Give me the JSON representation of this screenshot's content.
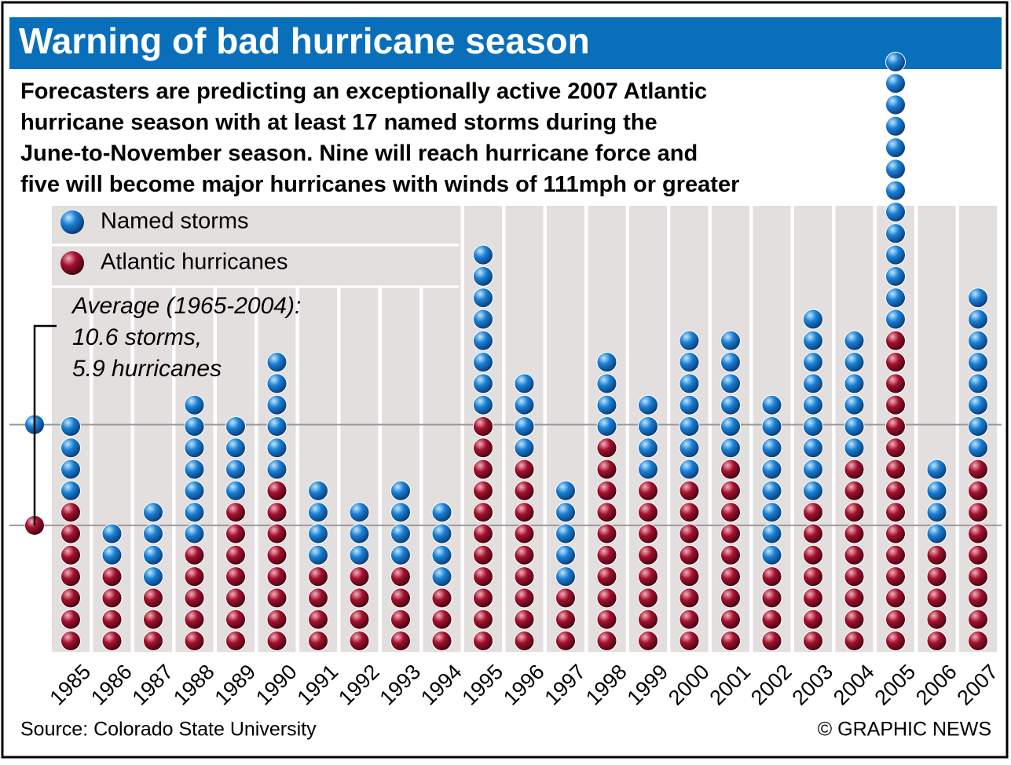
{
  "chart_data": {
    "type": "ballstack",
    "title": "Warning of bad hurricane season",
    "subtitle": [
      "Forecasters are predicting an exceptionally active 2007 Atlantic",
      "hurricane season with at least 17 named storms during the",
      "June-to-November season. Nine will reach hurricane force and",
      "five will become major hurricanes with winds of 111mph or greater"
    ],
    "categories": [
      "1985",
      "1986",
      "1987",
      "1988",
      "1989",
      "1990",
      "1991",
      "1992",
      "1993",
      "1994",
      "1995",
      "1996",
      "1997",
      "1998",
      "1999",
      "2000",
      "2001",
      "2002",
      "2003",
      "2004",
      "2005",
      "2006",
      "2007"
    ],
    "series": [
      {
        "name": "Named storms",
        "color": "#1a7fd4",
        "values": [
          11,
          6,
          7,
          12,
          11,
          14,
          8,
          7,
          8,
          7,
          19,
          13,
          8,
          14,
          12,
          15,
          15,
          12,
          16,
          15,
          28,
          9,
          17
        ]
      },
      {
        "name": "Atlantic hurricanes",
        "color": "#a3112e",
        "values": [
          7,
          4,
          3,
          5,
          7,
          8,
          4,
          4,
          4,
          3,
          11,
          9,
          3,
          10,
          8,
          8,
          9,
          4,
          7,
          9,
          15,
          5,
          9
        ]
      }
    ],
    "average_note": [
      "Average (1965-2004):",
      "10.6 storms,",
      "5.9 hurricanes"
    ],
    "averages": [
      10.6,
      5.9
    ],
    "source": "Source: Colorado State University",
    "credit": "© GRAPHIC NEWS"
  }
}
